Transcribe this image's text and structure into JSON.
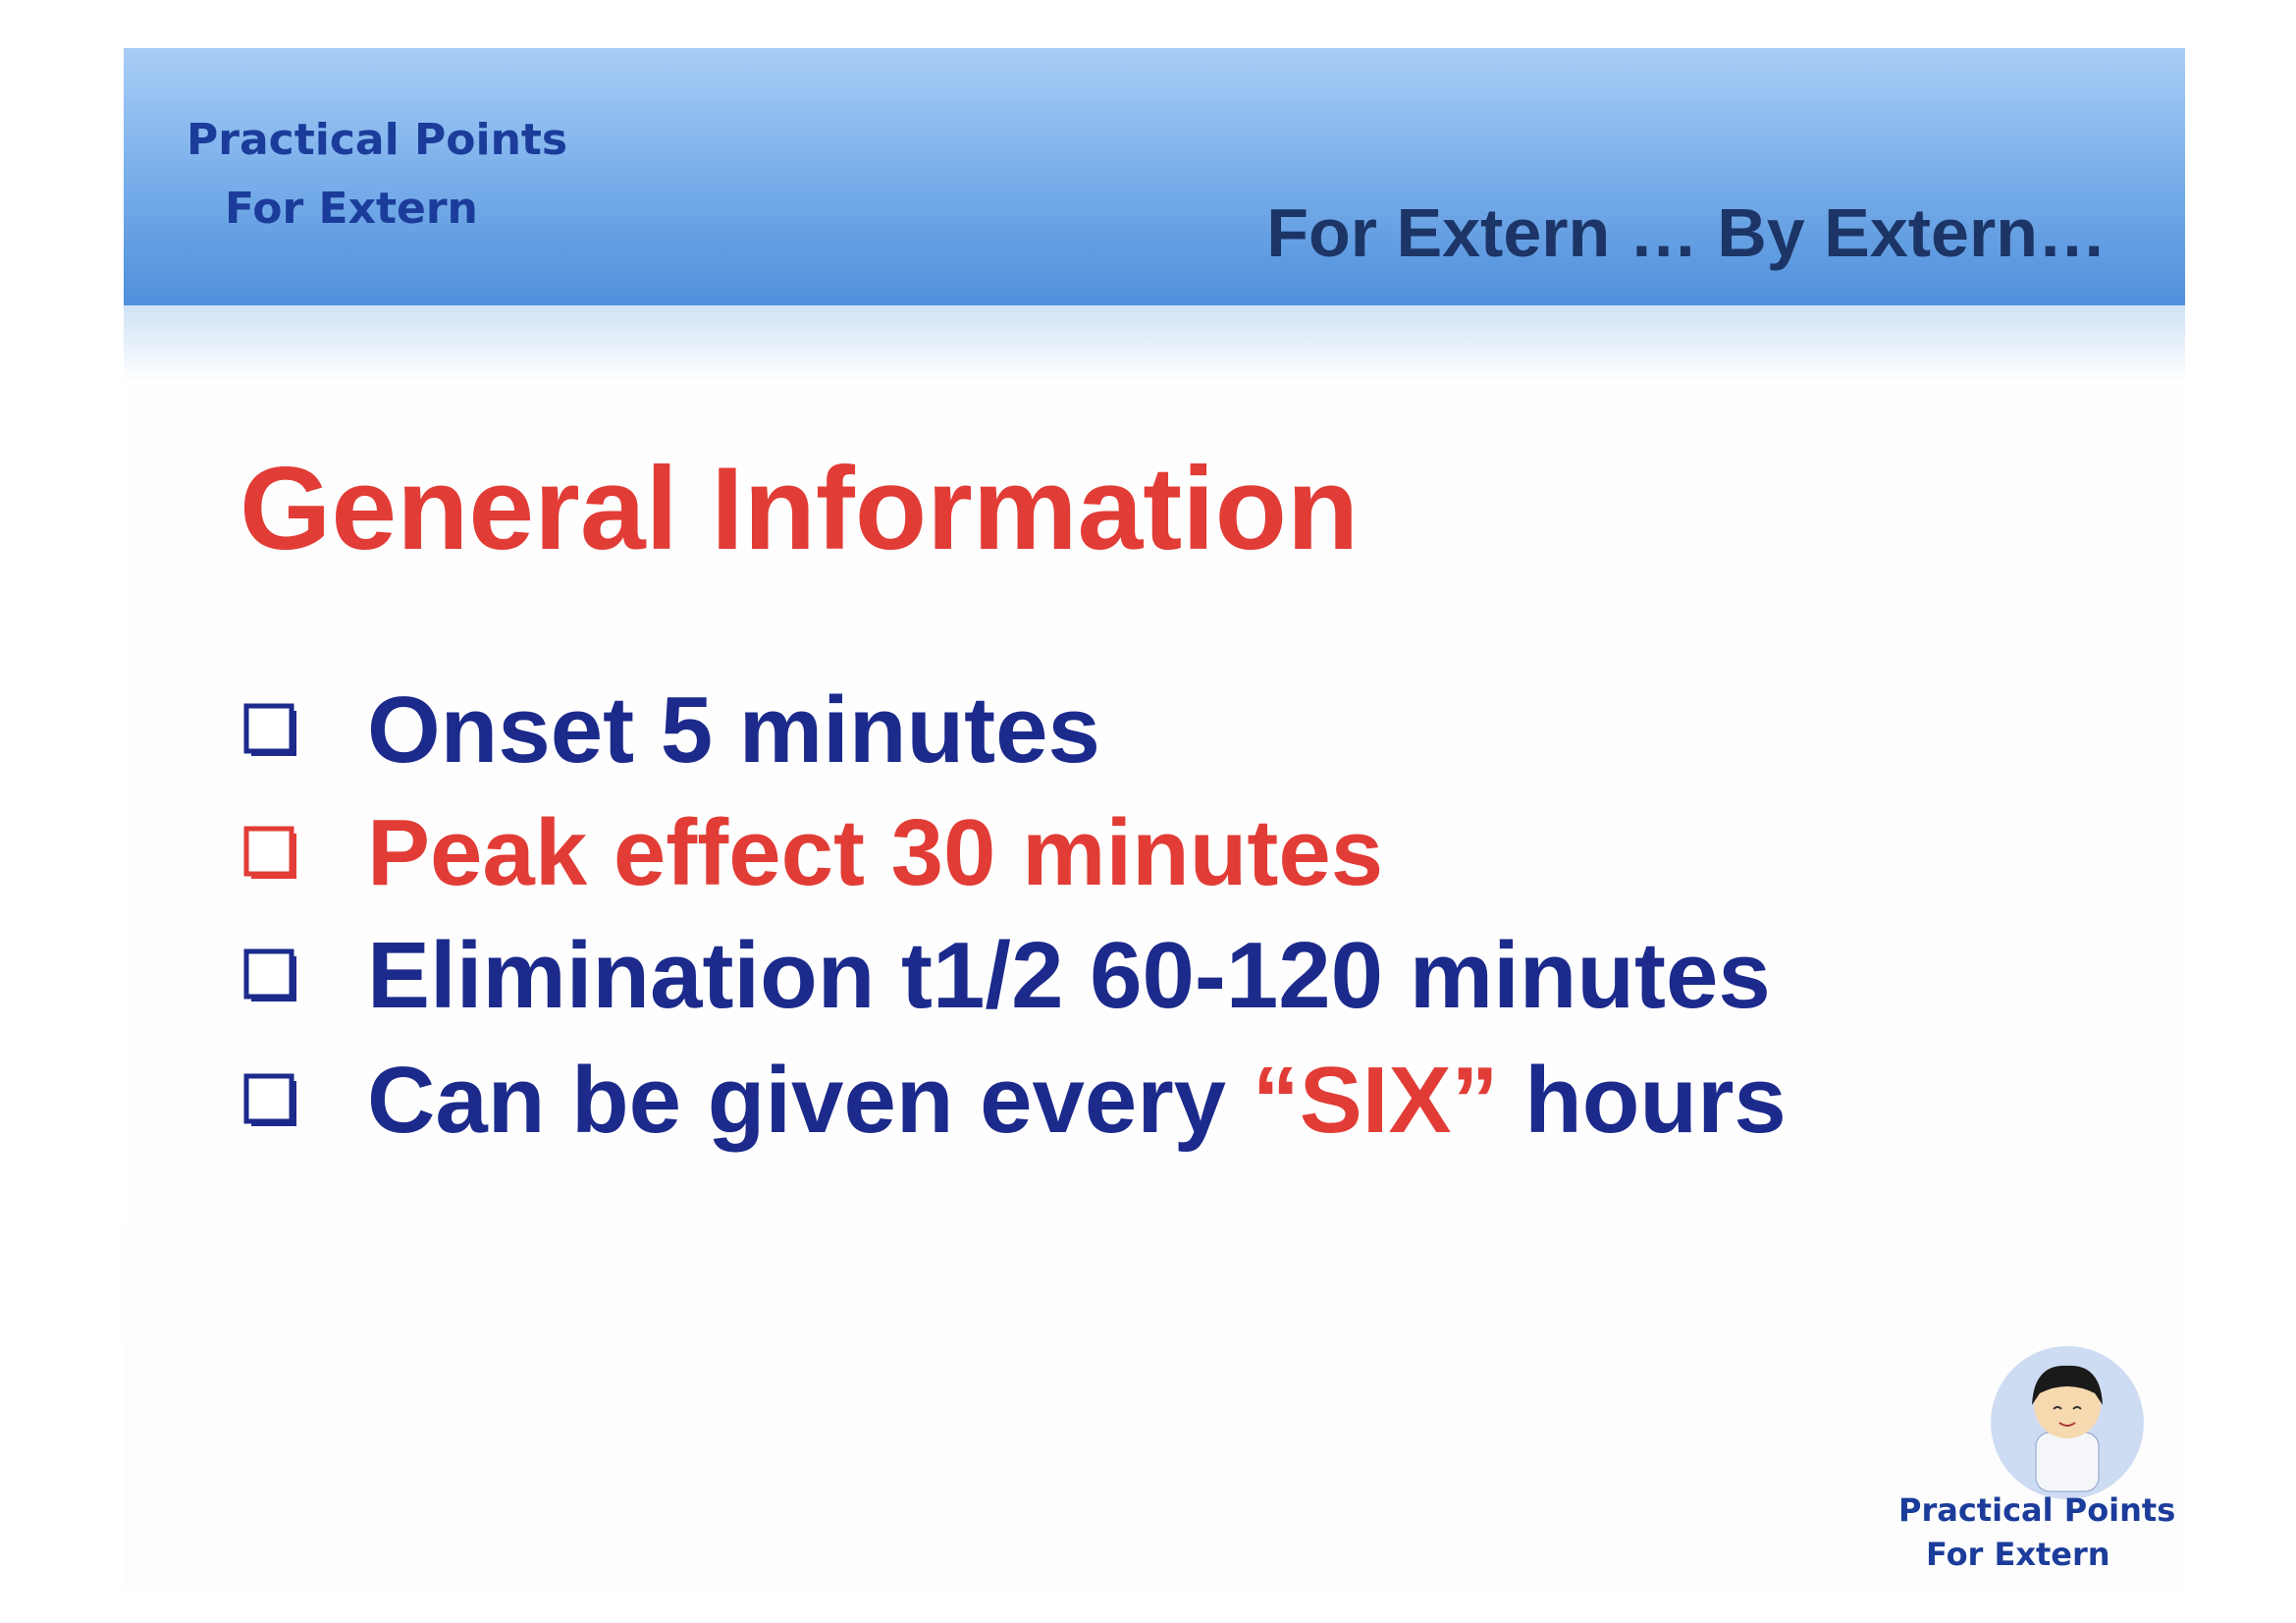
{
  "header": {
    "brand_lines": [
      "Practical Points",
      "For Extern"
    ],
    "tagline": "For Extern … By Extern…"
  },
  "title": "General Information",
  "bullets": [
    {
      "segments": [
        {
          "text": "Onset 5 minutes",
          "color": "#1c2a8c"
        }
      ]
    },
    {
      "segments": [
        {
          "text": "Peak effect 30 minutes",
          "color": "#e23c36"
        }
      ]
    },
    {
      "segments": [
        {
          "text": "Elimination t1/2 60-120 minutes",
          "color": "#1c2a8c"
        }
      ]
    },
    {
      "segments": [
        {
          "text": "Can be given every ",
          "color": "#1c2a8c"
        },
        {
          "text": "“SIX”",
          "color": "#e23c36"
        },
        {
          "text": " hours",
          "color": "#1c2a8c"
        }
      ]
    }
  ],
  "footer": {
    "brand_lines": [
      "Practical Points",
      "For Extern"
    ]
  }
}
